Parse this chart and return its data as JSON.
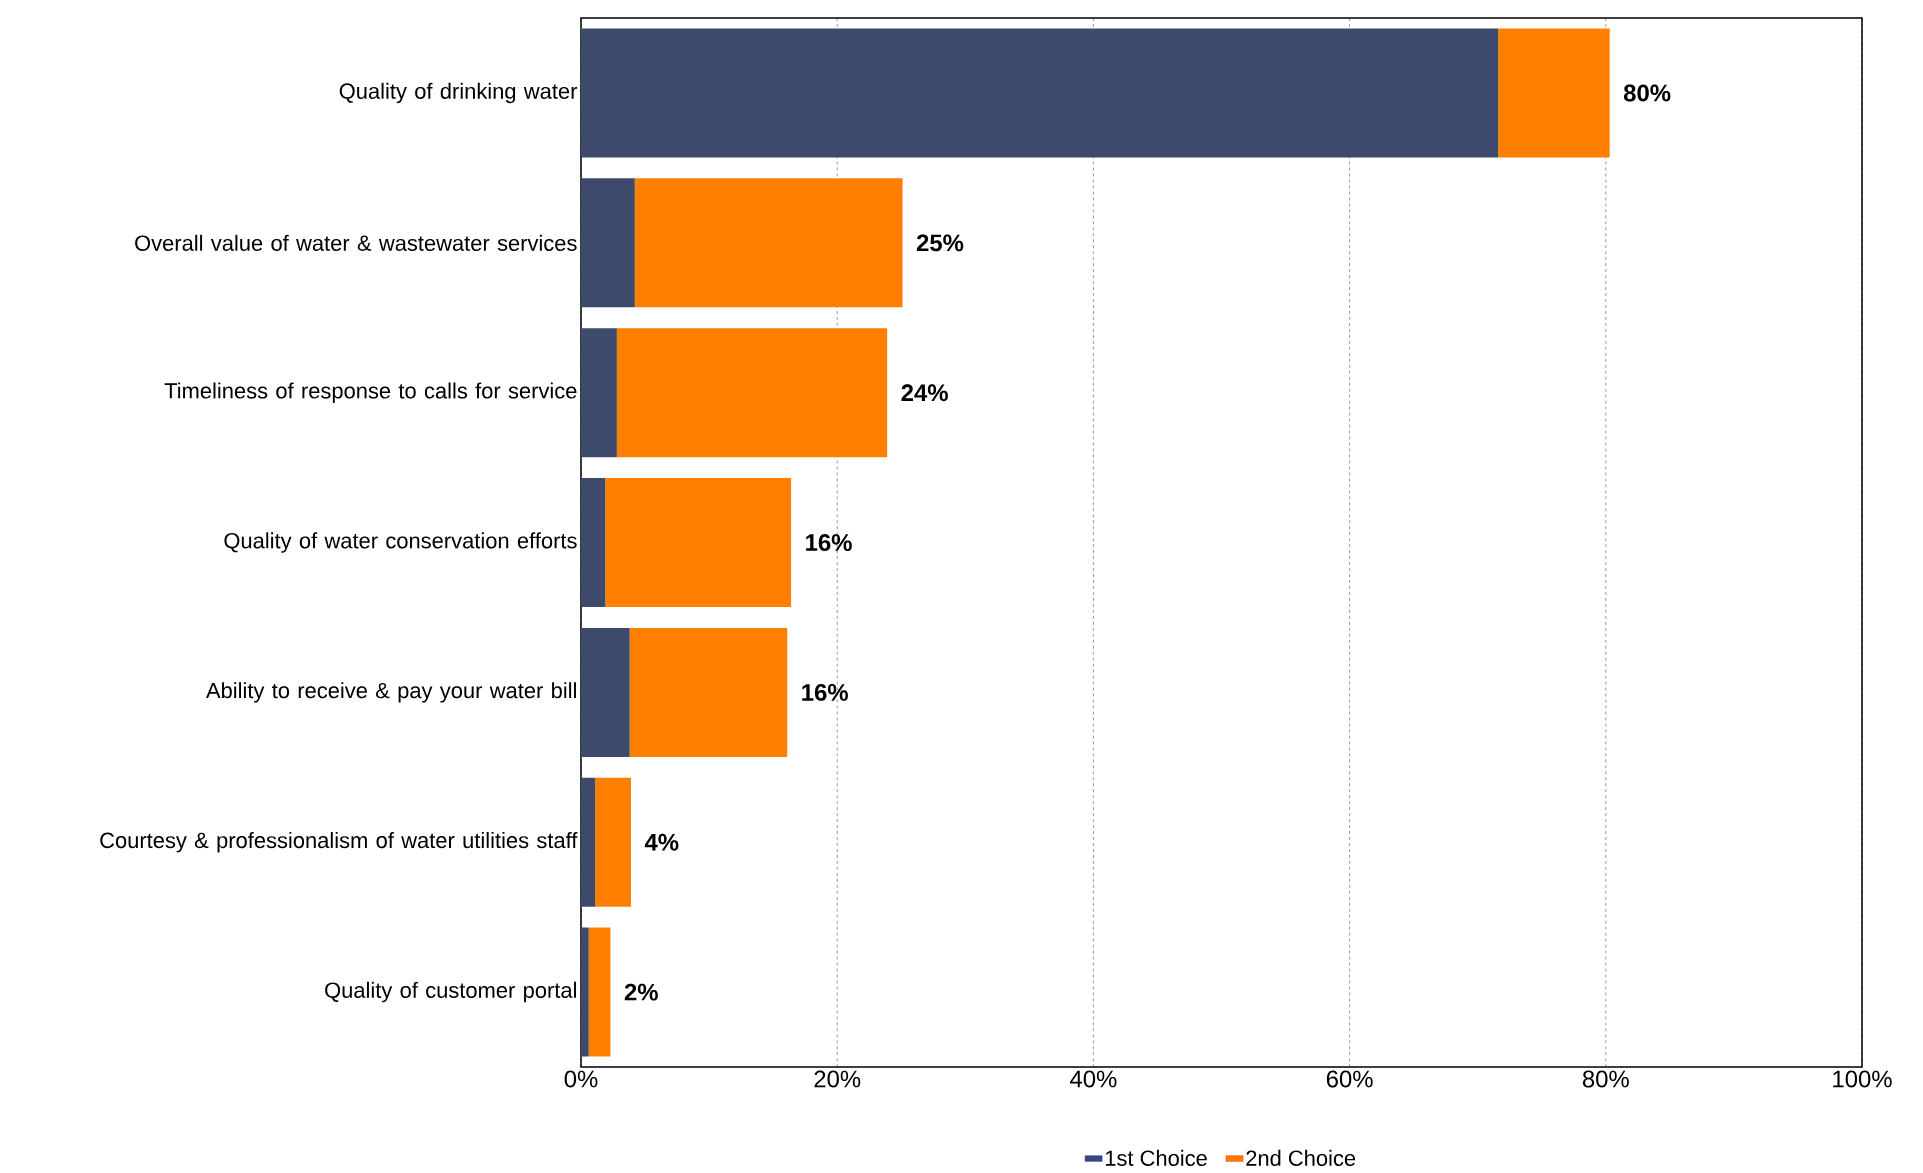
{
  "chart_data": {
    "type": "bar",
    "orientation": "horizontal",
    "stacked": true,
    "categories": [
      "Quality of drinking water",
      "Overall value of water & wastewater services",
      "Timeliness of response to calls for service",
      "Quality of water conservation efforts",
      "Ability to receive & pay your water bill",
      "Courtesy & professionalism of water utilities staff",
      "Quality of customer portal"
    ],
    "series": [
      {
        "name": "1st Choice",
        "color": "#3d4a6b",
        "values": [
          71.6,
          4.2,
          2.8,
          1.9,
          3.8,
          1.1,
          0.6
        ]
      },
      {
        "name": "2nd Choice",
        "color": "#ff8000",
        "values": [
          8.7,
          20.9,
          21.1,
          14.5,
          12.3,
          2.8,
          1.7
        ]
      }
    ],
    "totals": [
      "80%",
      "25%",
      "24%",
      "16%",
      "16%",
      "4%",
      "2%"
    ],
    "xlim": [
      0,
      100
    ],
    "xticks": [
      {
        "value": 0,
        "label": "0%"
      },
      {
        "value": 20,
        "label": "20%"
      },
      {
        "value": 40,
        "label": "40%"
      },
      {
        "value": 60,
        "label": "60%"
      },
      {
        "value": 80,
        "label": "80%"
      },
      {
        "value": 100,
        "label": "100%"
      }
    ],
    "grid": "x",
    "legend": "bottom"
  }
}
